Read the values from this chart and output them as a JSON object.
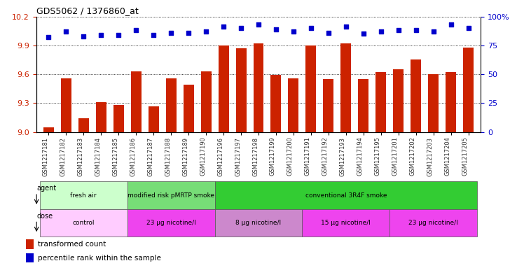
{
  "title": "GDS5062 / 1376860_at",
  "samples": [
    "GSM1217181",
    "GSM1217182",
    "GSM1217183",
    "GSM1217184",
    "GSM1217185",
    "GSM1217186",
    "GSM1217187",
    "GSM1217188",
    "GSM1217189",
    "GSM1217190",
    "GSM1217196",
    "GSM1217197",
    "GSM1217198",
    "GSM1217199",
    "GSM1217200",
    "GSM1217191",
    "GSM1217192",
    "GSM1217193",
    "GSM1217194",
    "GSM1217195",
    "GSM1217201",
    "GSM1217202",
    "GSM1217203",
    "GSM1217204",
    "GSM1217205"
  ],
  "bar_values": [
    9.05,
    9.56,
    9.14,
    9.31,
    9.28,
    9.63,
    9.27,
    9.56,
    9.49,
    9.63,
    9.9,
    9.87,
    9.92,
    9.59,
    9.56,
    9.9,
    9.55,
    9.92,
    9.55,
    9.62,
    9.65,
    9.75,
    9.6,
    9.62,
    9.88
  ],
  "percentile_values": [
    82,
    87,
    83,
    84,
    84,
    88,
    84,
    86,
    86,
    87,
    91,
    90,
    93,
    89,
    87,
    90,
    86,
    91,
    85,
    87,
    88,
    88,
    87,
    93,
    90
  ],
  "ylim_left": [
    9.0,
    10.2
  ],
  "ylim_right": [
    0,
    100
  ],
  "yticks_left": [
    9.0,
    9.3,
    9.6,
    9.9,
    10.2
  ],
  "yticks_right": [
    0,
    25,
    50,
    75,
    100
  ],
  "bar_color": "#cc2200",
  "dot_color": "#0000cc",
  "background_color": "#ffffff",
  "agent_rows": [
    {
      "label": "fresh air",
      "start": 0,
      "end": 5,
      "color": "#ccffcc"
    },
    {
      "label": "modified risk pMRTP smoke",
      "start": 5,
      "end": 10,
      "color": "#77dd77"
    },
    {
      "label": "conventional 3R4F smoke",
      "start": 10,
      "end": 25,
      "color": "#33cc33"
    }
  ],
  "dose_rows": [
    {
      "label": "control",
      "start": 0,
      "end": 5,
      "color": "#ffccff"
    },
    {
      "label": "23 μg nicotine/l",
      "start": 5,
      "end": 10,
      "color": "#ee44ee"
    },
    {
      "label": "8 μg nicotine/l",
      "start": 10,
      "end": 15,
      "color": "#cc88cc"
    },
    {
      "label": "15 μg nicotine/l",
      "start": 15,
      "end": 20,
      "color": "#ee44ee"
    },
    {
      "label": "23 μg nicotine/l",
      "start": 20,
      "end": 25,
      "color": "#ee44ee"
    }
  ]
}
